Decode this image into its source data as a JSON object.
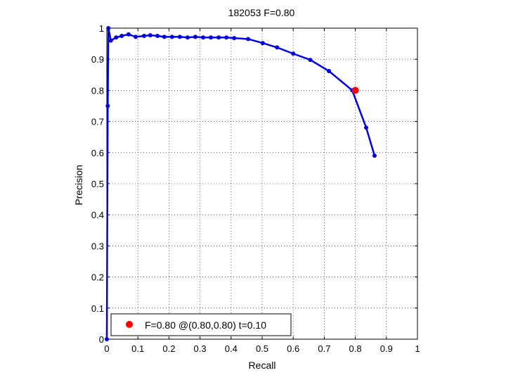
{
  "chart_data": {
    "type": "line",
    "title": "182053 F=0.80",
    "xlabel": "Recall",
    "ylabel": "Precision",
    "xlim": [
      0,
      1
    ],
    "ylim": [
      0,
      1
    ],
    "grid": true,
    "x_ticks": [
      {
        "value": 0,
        "label": "0"
      },
      {
        "value": 0.1,
        "label": "0.1"
      },
      {
        "value": 0.2,
        "label": "0.2"
      },
      {
        "value": 0.3,
        "label": "0.3"
      },
      {
        "value": 0.4,
        "label": "0.4"
      },
      {
        "value": 0.5,
        "label": "0.5"
      },
      {
        "value": 0.6,
        "label": "0.6"
      },
      {
        "value": 0.7,
        "label": "0.7"
      },
      {
        "value": 0.8,
        "label": "0.8"
      },
      {
        "value": 0.9,
        "label": "0.9"
      },
      {
        "value": 1,
        "label": "1"
      }
    ],
    "y_ticks": [
      {
        "value": 0,
        "label": "0"
      },
      {
        "value": 0.1,
        "label": "0.1"
      },
      {
        "value": 0.2,
        "label": "0.2"
      },
      {
        "value": 0.3,
        "label": "0.3"
      },
      {
        "value": 0.4,
        "label": "0.4"
      },
      {
        "value": 0.5,
        "label": "0.5"
      },
      {
        "value": 0.6,
        "label": "0.6"
      },
      {
        "value": 0.7,
        "label": "0.7"
      },
      {
        "value": 0.8,
        "label": "0.8"
      },
      {
        "value": 0.9,
        "label": "0.9"
      },
      {
        "value": 1,
        "label": "1"
      }
    ],
    "series": [
      {
        "color": "#0000e0",
        "x": [
          0.0,
          0.003,
          0.005,
          0.013,
          0.03,
          0.048,
          0.07,
          0.093,
          0.12,
          0.14,
          0.163,
          0.185,
          0.21,
          0.235,
          0.26,
          0.285,
          0.31,
          0.335,
          0.36,
          0.385,
          0.41,
          0.455,
          0.502,
          0.548,
          0.6,
          0.655,
          0.715,
          0.79,
          0.835,
          0.862
        ],
        "y": [
          0.0,
          0.75,
          1.0,
          0.96,
          0.97,
          0.975,
          0.98,
          0.972,
          0.975,
          0.977,
          0.975,
          0.972,
          0.972,
          0.972,
          0.97,
          0.972,
          0.97,
          0.97,
          0.97,
          0.97,
          0.968,
          0.965,
          0.952,
          0.938,
          0.918,
          0.898,
          0.862,
          0.8,
          0.68,
          0.59
        ]
      }
    ],
    "highlight_point": {
      "x": 0.8,
      "y": 0.8,
      "color": "#ff0000"
    },
    "legend": {
      "text": "F=0.80 @(0.80,0.80) t=0.10",
      "placement": "bottom-left"
    }
  }
}
